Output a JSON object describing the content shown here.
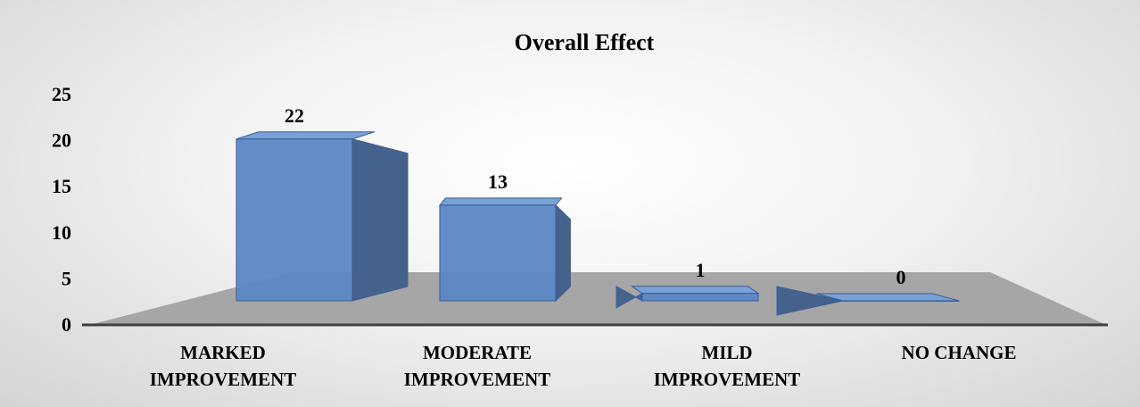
{
  "chart_data": {
    "type": "bar3d",
    "title": "Overall Effect",
    "categories": [
      "MARKED IMPROVEMENT",
      "MODERATE IMPROVEMENT",
      "MILD IMPROVEMENT",
      "NO CHANGE"
    ],
    "values": [
      22,
      13,
      1,
      0
    ],
    "color": "#5b87c5",
    "ylim": [
      0,
      25
    ],
    "yticks": [
      0,
      5,
      10,
      15,
      20,
      25
    ]
  }
}
